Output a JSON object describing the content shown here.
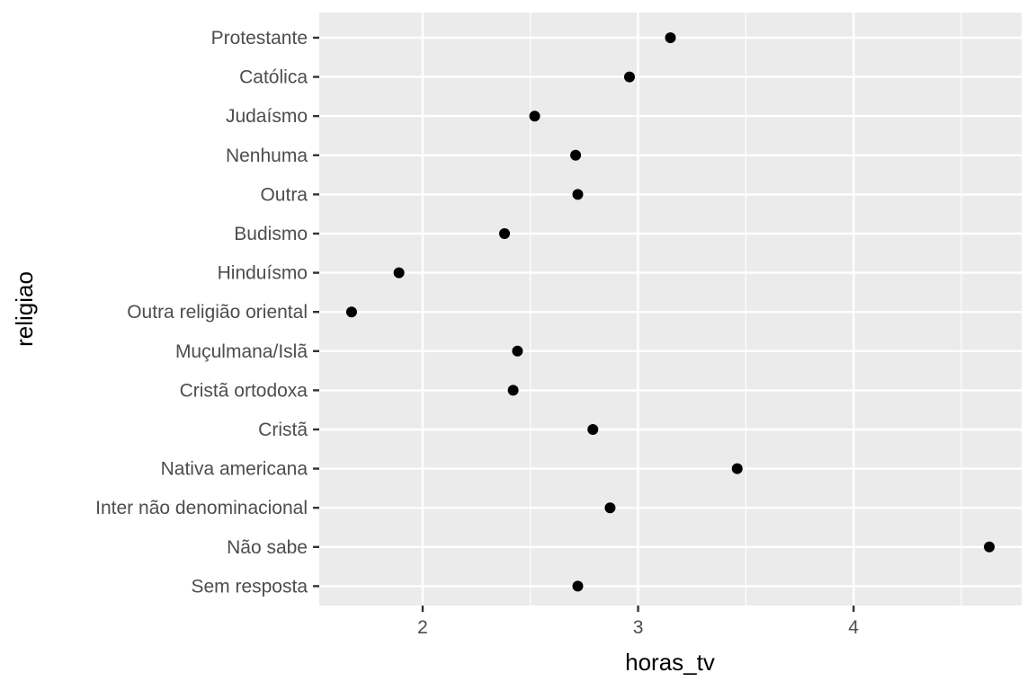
{
  "chart_data": {
    "type": "scatter",
    "xlabel": "horas_tv",
    "ylabel": "religiao",
    "xlim": [
      1.52,
      4.78
    ],
    "x_ticks": [
      2,
      3,
      4
    ],
    "x_tick_labels": [
      "2",
      "3",
      "4"
    ],
    "categories": [
      "Protestante",
      "Católica",
      "Judaísmo",
      "Nenhuma",
      "Outra",
      "Budismo",
      "Hinduísmo",
      "Outra religião oriental",
      "Muçulmana/Islã",
      "Cristã ortodoxa",
      "Cristã",
      "Nativa americana",
      "Inter não denominacional",
      "Não sabe",
      "Sem resposta"
    ],
    "values": [
      3.15,
      2.96,
      2.52,
      2.71,
      2.72,
      2.38,
      1.89,
      1.67,
      2.44,
      2.42,
      2.79,
      3.46,
      2.87,
      4.63,
      2.72
    ],
    "grid": true,
    "colors": {
      "panel": "#EBEBEB",
      "grid": "#FFFFFF",
      "point": "#000000",
      "tick": "#333333",
      "label": "#4D4D4D"
    }
  }
}
